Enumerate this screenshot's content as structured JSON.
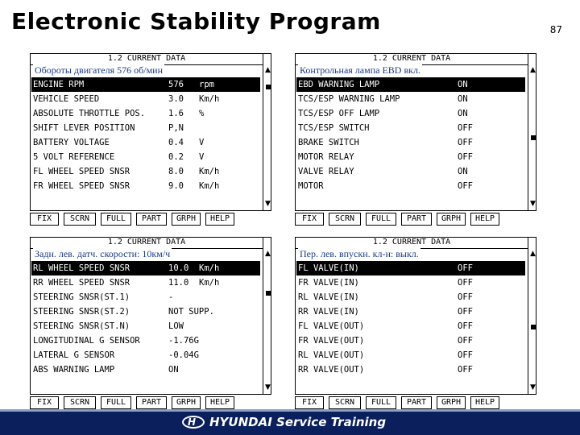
{
  "slide": {
    "title": "Electronic Stability Program",
    "page_number": "87"
  },
  "panels": [
    {
      "header": "1.2 CURRENT DATA",
      "note": "Обороты двигателя 576 об/мин",
      "rows": [
        {
          "name": "ENGINE RPM",
          "value": "576",
          "unit": "rpm",
          "selected": true
        },
        {
          "name": "VEHICLE SPEED",
          "value": "3.0",
          "unit": "Km/h"
        },
        {
          "name": "ABSOLUTE THROTTLE POS.",
          "value": "1.6",
          "unit": "%"
        },
        {
          "name": "SHIFT LEVER POSITION",
          "value": "P,N",
          "unit": ""
        },
        {
          "name": "BATTERY VOLTAGE",
          "value": "0.4",
          "unit": "V"
        },
        {
          "name": "5 VOLT REFERENCE",
          "value": "0.2",
          "unit": "V"
        },
        {
          "name": "FL WHEEL SPEED SNSR",
          "value": "8.0",
          "unit": "Km/h"
        },
        {
          "name": "FR WHEEL SPEED SNSR",
          "value": "9.0",
          "unit": "Km/h"
        }
      ],
      "scroll_position": 0.05
    },
    {
      "header": "1.2 CURRENT DATA",
      "note": "Контрольная лампа EBD вкл.",
      "rows": [
        {
          "name": "EBD WARNING LAMP",
          "value": "ON",
          "unit": "",
          "selected": true
        },
        {
          "name": "TCS/ESP WARNING LAMP",
          "value": "ON",
          "unit": ""
        },
        {
          "name": "TCS/ESP OFF LAMP",
          "value": "ON",
          "unit": ""
        },
        {
          "name": "TCS/ESP SWITCH",
          "value": "OFF",
          "unit": ""
        },
        {
          "name": "BRAKE SWITCH",
          "value": "OFF",
          "unit": ""
        },
        {
          "name": "MOTOR RELAY",
          "value": "OFF",
          "unit": ""
        },
        {
          "name": "VALVE RELAY",
          "value": "ON",
          "unit": ""
        },
        {
          "name": "MOTOR",
          "value": "OFF",
          "unit": ""
        }
      ],
      "scroll_position": 0.5
    },
    {
      "header": "1.2 CURRENT DATA",
      "note": "Задн. лев. датч. скорости: 10км/ч",
      "rows": [
        {
          "name": "RL WHEEL SPEED SNSR",
          "value": "10.0",
          "unit": "Km/h",
          "selected": true
        },
        {
          "name": "RR WHEEL SPEED SNSR",
          "value": "11.0",
          "unit": "Km/h"
        },
        {
          "name": "STEERING SNSR(ST.1)",
          "value": "-",
          "unit": ""
        },
        {
          "name": "STEERING SNSR(ST.2)",
          "value": "NOT SUPP.",
          "unit": ""
        },
        {
          "name": "STEERING SNSR(ST.N)",
          "value": "LOW",
          "unit": ""
        },
        {
          "name": "LONGITUDINAL G SENSOR",
          "value": "-1.76G",
          "unit": ""
        },
        {
          "name": "LATERAL G SENSOR",
          "value": "-0.04G",
          "unit": ""
        },
        {
          "name": "ABS WARNING LAMP",
          "value": "ON",
          "unit": ""
        }
      ],
      "scroll_position": 0.25
    },
    {
      "header": "1.2 CURRENT DATA",
      "note": "Пер. лев. впускн. кл-н: выкл.",
      "rows": [
        {
          "name": "FL VALVE(IN)",
          "value": "OFF",
          "unit": "",
          "selected": true
        },
        {
          "name": "FR VALVE(IN)",
          "value": "OFF",
          "unit": ""
        },
        {
          "name": "RL VALVE(IN)",
          "value": "OFF",
          "unit": ""
        },
        {
          "name": "RR VALVE(IN)",
          "value": "OFF",
          "unit": ""
        },
        {
          "name": "FL VALVE(OUT)",
          "value": "OFF",
          "unit": ""
        },
        {
          "name": "FR VALVE(OUT)",
          "value": "OFF",
          "unit": ""
        },
        {
          "name": "RL VALVE(OUT)",
          "value": "OFF",
          "unit": ""
        },
        {
          "name": "RR VALVE(OUT)",
          "value": "OFF",
          "unit": ""
        }
      ],
      "scroll_position": 0.55
    }
  ],
  "function_keys": [
    "FIX",
    "SCRN",
    "FULL",
    "PART",
    "GRPH",
    "HELP"
  ],
  "footer": {
    "logo_letter": "H",
    "brand": "HYUNDAI Service  Training",
    "background_color": "#0a1f5c"
  },
  "icons": {
    "scroll_up": "scroll-up-arrow-icon",
    "scroll_down": "scroll-down-arrow-icon",
    "logo": "hyundai-logo-icon"
  },
  "colors": {
    "note_text": "#1a3a8a",
    "selected_row_bg": "#000000"
  }
}
